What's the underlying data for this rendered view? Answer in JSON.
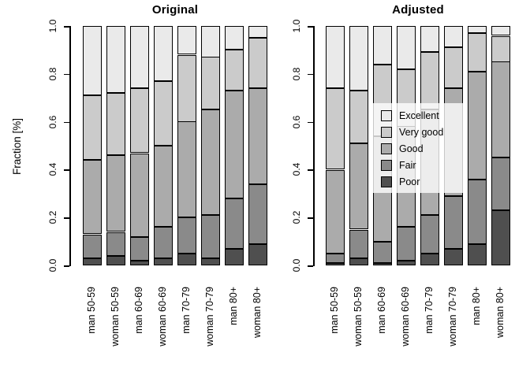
{
  "figure": {
    "ylabel": "Fraction [%]",
    "y_ticks": [
      "0.0",
      "0.2",
      "0.4",
      "0.6",
      "0.8",
      "1.0"
    ],
    "background": "#ffffff",
    "axis_color": "#000000",
    "legend": {
      "position": "center-right-panel",
      "entries": [
        {
          "label": "Excellent",
          "color": "#EAEAEA"
        },
        {
          "label": "Very good",
          "color": "#CBCBCB"
        },
        {
          "label": "Good",
          "color": "#ABABAB"
        },
        {
          "label": "Fair",
          "color": "#8A8A8A"
        },
        {
          "label": "Poor",
          "color": "#4F4F4F"
        }
      ]
    }
  },
  "chart_data": [
    {
      "type": "bar",
      "stacked": true,
      "title": "Original",
      "ylabel": "Fraction [%]",
      "ylim": [
        0,
        1
      ],
      "grid": false,
      "categories": [
        "man 50-59",
        "woman 50-59",
        "man 60-69",
        "woman 60-69",
        "man 70-79",
        "woman 70-79",
        "man 80+",
        "woman 80+"
      ],
      "series": [
        {
          "name": "Poor",
          "color": "#4F4F4F",
          "values": [
            0.03,
            0.04,
            0.02,
            0.03,
            0.05,
            0.03,
            0.07,
            0.09
          ]
        },
        {
          "name": "Fair",
          "color": "#8A8A8A",
          "values": [
            0.1,
            0.1,
            0.1,
            0.13,
            0.15,
            0.18,
            0.21,
            0.25
          ]
        },
        {
          "name": "Good",
          "color": "#ABABAB",
          "values": [
            0.31,
            0.32,
            0.35,
            0.34,
            0.4,
            0.44,
            0.45,
            0.4
          ]
        },
        {
          "name": "Very good",
          "color": "#CBCBCB",
          "values": [
            0.27,
            0.26,
            0.27,
            0.27,
            0.28,
            0.22,
            0.17,
            0.21
          ]
        },
        {
          "name": "Excellent",
          "color": "#EAEAEA",
          "values": [
            0.29,
            0.28,
            0.26,
            0.23,
            0.12,
            0.13,
            0.1,
            0.05
          ]
        }
      ]
    },
    {
      "type": "bar",
      "stacked": true,
      "title": "Adjusted",
      "ylabel": "Fraction [%]",
      "ylim": [
        0,
        1
      ],
      "grid": false,
      "categories": [
        "man 50-59",
        "woman 50-59",
        "man 60-69",
        "woman 60-69",
        "man 70-79",
        "woman 70-79",
        "man 80+",
        "woman 80+"
      ],
      "series": [
        {
          "name": "Poor",
          "color": "#4F4F4F",
          "values": [
            0.01,
            0.03,
            0.01,
            0.02,
            0.05,
            0.07,
            0.09,
            0.23
          ]
        },
        {
          "name": "Fair",
          "color": "#8A8A8A",
          "values": [
            0.04,
            0.12,
            0.09,
            0.14,
            0.16,
            0.22,
            0.27,
            0.22
          ]
        },
        {
          "name": "Good",
          "color": "#ABABAB",
          "values": [
            0.35,
            0.36,
            0.44,
            0.42,
            0.44,
            0.45,
            0.45,
            0.4
          ]
        },
        {
          "name": "Very good",
          "color": "#CBCBCB",
          "values": [
            0.34,
            0.22,
            0.3,
            0.24,
            0.24,
            0.17,
            0.16,
            0.11
          ]
        },
        {
          "name": "Excellent",
          "color": "#EAEAEA",
          "values": [
            0.26,
            0.27,
            0.16,
            0.18,
            0.11,
            0.09,
            0.03,
            0.04
          ]
        }
      ]
    }
  ]
}
